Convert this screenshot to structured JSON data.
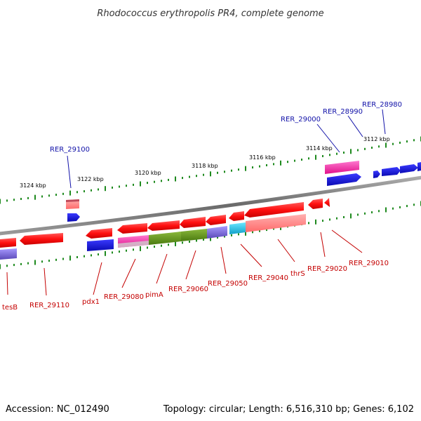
{
  "title": "Rhodococcus erythropolis PR4, complete genome",
  "footer": {
    "accession": "Accession: NC_012490",
    "topology": "Topology: circular; Length: 6,516,310 bp; Genes: 6,102"
  },
  "colors": {
    "backbone": "#8a8a8a",
    "tick": "#1e8a1e",
    "forward_red": "#ff1a1a",
    "reverse_red": "#ff1a1a",
    "blue": "#1a1ae6",
    "pink_feature": "#ff8a8a",
    "magenta": "#ff2aa0",
    "olive": "#6a9a1e",
    "purple": "#7a6ad6",
    "cyan": "#22c4e6",
    "label_blue": "#1010a8",
    "label_red": "#c40000"
  },
  "scale_labels": [
    "3124 kbp",
    "3122 kbp",
    "3120 kbp",
    "3118 kbp",
    "3116 kbp",
    "3114 kbp",
    "3112 kbp"
  ],
  "top_labels": [
    "RER_29100",
    "RER_29000",
    "RER_28990",
    "RER_28980"
  ],
  "bottom_labels": [
    "tesB",
    "RER_29110",
    "pdx1",
    "RER_29080",
    "pimA",
    "RER_29060",
    "RER_29050",
    "RER_29040",
    "thrS",
    "RER_29020",
    "RER_29010"
  ]
}
